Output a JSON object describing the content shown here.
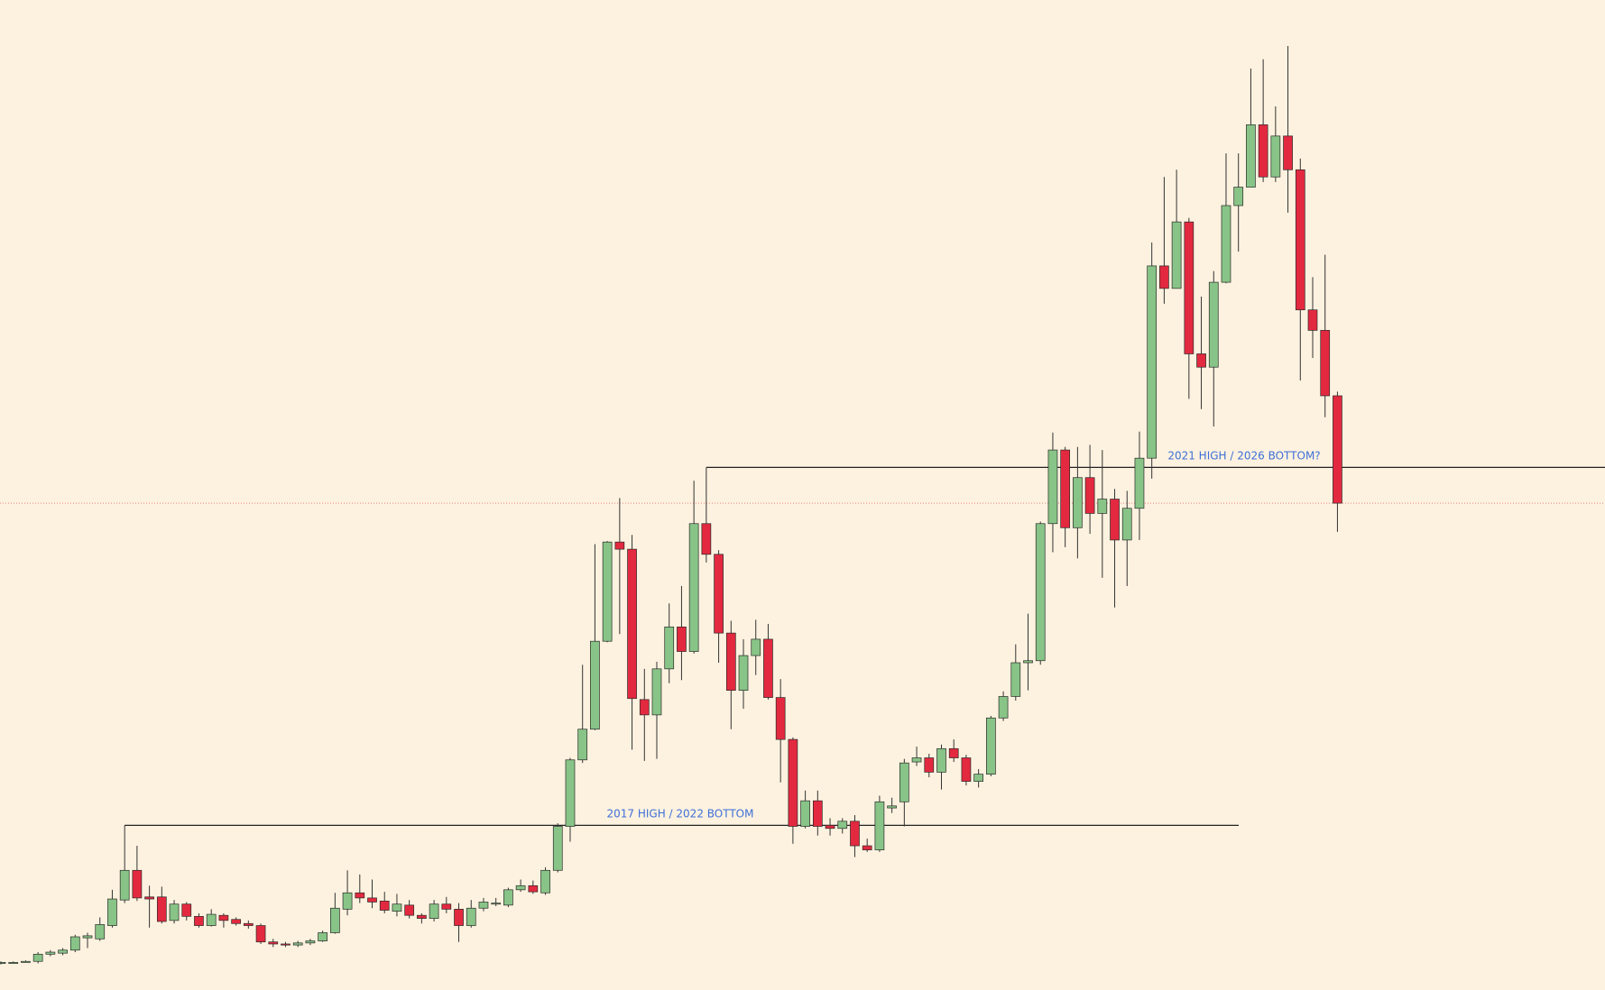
{
  "chart_data": {
    "type": "candlestick",
    "open": [
      58,
      59,
      60,
      60,
      67,
      68,
      71,
      83,
      82,
      95,
      120,
      149,
      123,
      123,
      100,
      116,
      104,
      95,
      105,
      101,
      97,
      95,
      79,
      77,
      76,
      78,
      80,
      88,
      111,
      127,
      122,
      119,
      109,
      115,
      105,
      102,
      116,
      111,
      95,
      112,
      116,
      115,
      130,
      134,
      127,
      149,
      192,
      257,
      287,
      373,
      470,
      463,
      316,
      301,
      346,
      387,
      363,
      488,
      458,
      381,
      325,
      359,
      375,
      318,
      277,
      192,
      217,
      193,
      190,
      197,
      173,
      169,
      210,
      216,
      255,
      259,
      245,
      268,
      259,
      236,
      243,
      298,
      319,
      352,
      354,
      488,
      560,
      484,
      533,
      498,
      512,
      472,
      503,
      552,
      740,
      718,
      783,
      654,
      641,
      724,
      799,
      817,
      878,
      827,
      867,
      834,
      697,
      677,
      613
    ],
    "high": [
      60,
      60,
      61,
      69,
      71,
      73,
      86,
      88,
      103,
      130,
      193,
      173,
      134,
      133,
      120,
      118,
      107,
      111,
      107,
      103,
      100,
      97,
      82,
      79,
      80,
      82,
      90,
      127,
      149,
      145,
      140,
      128,
      126,
      120,
      107,
      120,
      123,
      117,
      120,
      122,
      122,
      132,
      140,
      139,
      152,
      195,
      259,
      350,
      468,
      471,
      513,
      477,
      346,
      353,
      410,
      427,
      530,
      543,
      462,
      393,
      375,
      394,
      390,
      336,
      279,
      227,
      227,
      200,
      200,
      203,
      180,
      222,
      220,
      258,
      270,
      263,
      272,
      277,
      262,
      248,
      300,
      324,
      370,
      400,
      490,
      577,
      563,
      563,
      565,
      560,
      522,
      520,
      578,
      763,
      827,
      834,
      787,
      710,
      735,
      850,
      850,
      933,
      942,
      896,
      955,
      845,
      729,
      751,
      617
    ],
    "low": [
      57,
      58,
      59,
      58,
      65,
      66,
      69,
      73,
      80,
      93,
      117,
      119,
      93,
      97,
      97,
      100,
      93,
      94,
      93,
      95,
      92,
      77,
      74,
      74,
      74,
      76,
      79,
      87,
      105,
      117,
      112,
      107,
      104,
      102,
      97,
      99,
      107,
      79,
      93,
      109,
      114,
      113,
      128,
      126,
      125,
      147,
      177,
      254,
      286,
      372,
      380,
      267,
      256,
      258,
      332,
      335,
      361,
      450,
      352,
      287,
      307,
      340,
      316,
      235,
      175,
      190,
      183,
      183,
      185,
      162,
      167,
      167,
      205,
      192,
      251,
      240,
      228,
      255,
      232,
      230,
      241,
      295,
      315,
      325,
      350,
      460,
      465,
      454,
      478,
      435,
      406,
      427,
      472,
      532,
      703,
      718,
      610,
      600,
      583,
      723,
      754,
      817,
      822,
      822,
      792,
      628,
      650,
      592,
      480
    ],
    "close": [
      59,
      59,
      60,
      67,
      69,
      71,
      84,
      85,
      96,
      121,
      149,
      122,
      121,
      99,
      116,
      104,
      95,
      106,
      100,
      97,
      95,
      79,
      77,
      76,
      78,
      80,
      88,
      112,
      127,
      122,
      118,
      110,
      116,
      105,
      102,
      116,
      111,
      95,
      112,
      118,
      117,
      130,
      134,
      128,
      149,
      192,
      257,
      287,
      373,
      470,
      463,
      317,
      301,
      346,
      387,
      363,
      488,
      458,
      381,
      325,
      359,
      375,
      318,
      277,
      192,
      217,
      192,
      190,
      197,
      173,
      169,
      216,
      212,
      254,
      259,
      245,
      268,
      259,
      236,
      243,
      298,
      319,
      352,
      354,
      488,
      560,
      484,
      533,
      498,
      512,
      472,
      503,
      552,
      740,
      718,
      783,
      654,
      641,
      724,
      799,
      817,
      878,
      827,
      867,
      834,
      697,
      677,
      613,
      508
    ],
    "up_color": "#88c487",
    "down_color": "#e3293f",
    "ylim": [
      32,
      1000
    ],
    "annotations": [
      {
        "text": "2017 HIGH / 2022 BOTTOM",
        "value": 193
      },
      {
        "text": "2021 HIGH / 2026 BOTTOM?",
        "value": 543
      }
    ]
  }
}
